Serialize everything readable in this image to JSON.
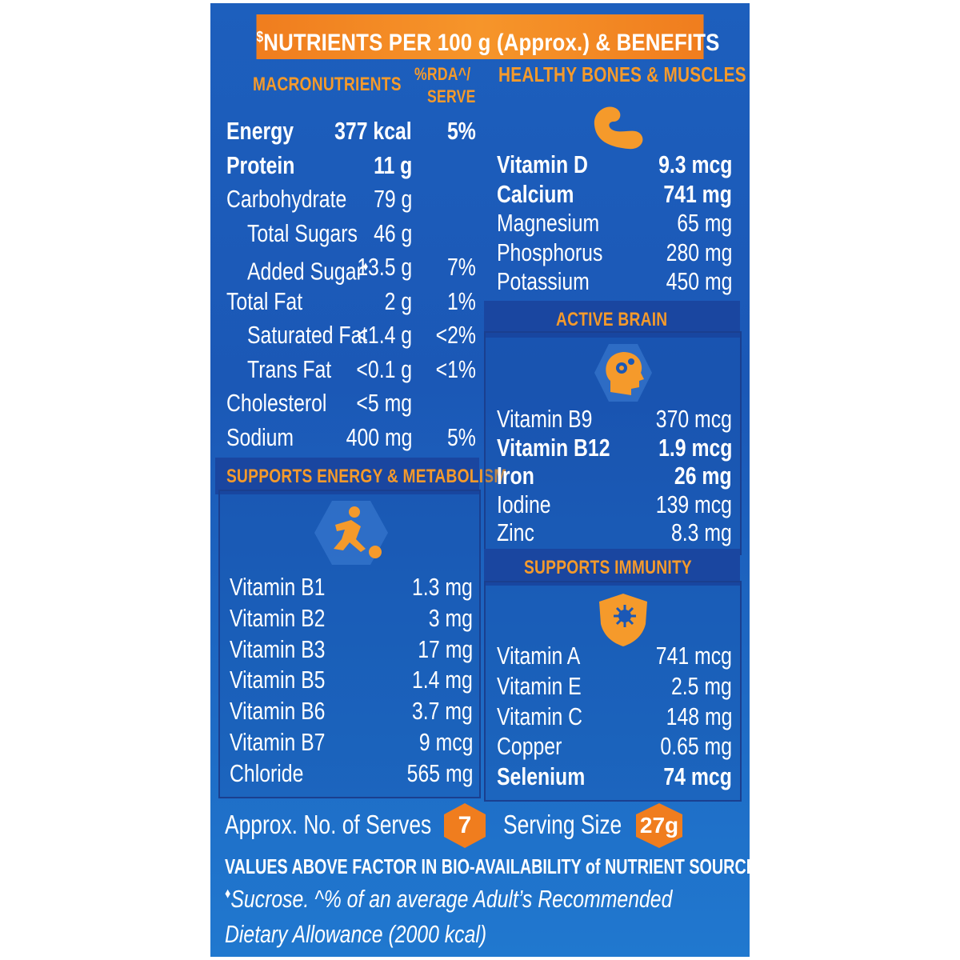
{
  "title": "NUTRIENTS PER 100 g (Approx.) & BENEFITS",
  "title_mark": "$",
  "macro": {
    "heading": "MACRONUTRIENTS",
    "rda_heading_1": "%RDA^/",
    "rda_heading_2": "SERVE",
    "rows": [
      {
        "name": "Energy",
        "value": "377 kcal",
        "rda": "5%"
      },
      {
        "name": "Protein",
        "value": "11 g",
        "rda": ""
      },
      {
        "name": "Carbohydrate",
        "value": "79 g",
        "rda": ""
      },
      {
        "name": "Total Sugars",
        "value": "46 g",
        "rda": ""
      },
      {
        "name": "Added Sugar",
        "mark": "♦",
        "value": "13.5 g",
        "rda": "7%"
      },
      {
        "name": "Total Fat",
        "value": "2 g",
        "rda": "1%"
      },
      {
        "name": "Saturated Fat",
        "value": "<1.4 g",
        "rda": "<2%"
      },
      {
        "name": "Trans Fat",
        "value": "<0.1 g",
        "rda": "<1%"
      },
      {
        "name": "Cholesterol",
        "value": "<5 mg",
        "rda": ""
      },
      {
        "name": "Sodium",
        "value": "400 mg",
        "rda": "5%"
      }
    ]
  },
  "energy": {
    "heading": "SUPPORTS ENERGY & METABOLISM",
    "icon": "football-player-icon",
    "rows": [
      {
        "name": "Vitamin B1",
        "value": "1.3 mg"
      },
      {
        "name": "Vitamin B2",
        "value": "3 mg"
      },
      {
        "name": "Vitamin B3",
        "value": "17 mg"
      },
      {
        "name": "Vitamin B5",
        "value": "1.4 mg"
      },
      {
        "name": "Vitamin B6",
        "value": "3.7 mg"
      },
      {
        "name": "Vitamin B7",
        "value": "9 mcg"
      },
      {
        "name": "Chloride",
        "value": "565 mg"
      }
    ]
  },
  "bones": {
    "heading": "HEALTHY BONES & MUSCLES",
    "icon": "flexed-arm-icon",
    "rows": [
      {
        "name": "Vitamin D",
        "value": "9.3 mcg"
      },
      {
        "name": "Calcium",
        "value": "741 mg"
      },
      {
        "name": "Magnesium",
        "value": "65 mg"
      },
      {
        "name": "Phosphorus",
        "value": "280 mg"
      },
      {
        "name": "Potassium",
        "value": "450 mg"
      }
    ]
  },
  "brain": {
    "heading": "ACTIVE BRAIN",
    "icon": "head-gears-icon",
    "rows": [
      {
        "name": "Vitamin B9",
        "value": "370 mcg"
      },
      {
        "name": "Vitamin B12",
        "value": "1.9 mcg"
      },
      {
        "name": "Iron",
        "value": "26 mg"
      },
      {
        "name": "Iodine",
        "value": "139 mcg"
      },
      {
        "name": "Zinc",
        "value": "8.3 mg"
      }
    ]
  },
  "immunity": {
    "heading": "SUPPORTS IMMUNITY",
    "icon": "shield-virus-icon",
    "rows": [
      {
        "name": "Vitamin A",
        "value": "741 mcg"
      },
      {
        "name": "Vitamin E",
        "value": "2.5 mg"
      },
      {
        "name": "Vitamin C",
        "value": "148 mg"
      },
      {
        "name": "Copper",
        "value": "0.65 mg"
      },
      {
        "name": "Selenium",
        "value": "74 mcg"
      }
    ]
  },
  "serves": {
    "label": "Approx. No. of Serves",
    "count": "7",
    "size_label": "Serving Size",
    "size": "27g"
  },
  "footnotes": {
    "line1": "VALUES ABOVE FACTOR IN BIO-AVAILABILITY of NUTRIENT SOURCES",
    "line2_mark": "♦",
    "line2": "Sucrose. ^% of an average Adult’s Recommended",
    "line3": "Dietary Allowance (2000 kcal)"
  },
  "colors": {
    "panel": "#1b58b6",
    "accent": "#f07d1e",
    "heading": "#f59a2b",
    "text": "#ffffff"
  }
}
